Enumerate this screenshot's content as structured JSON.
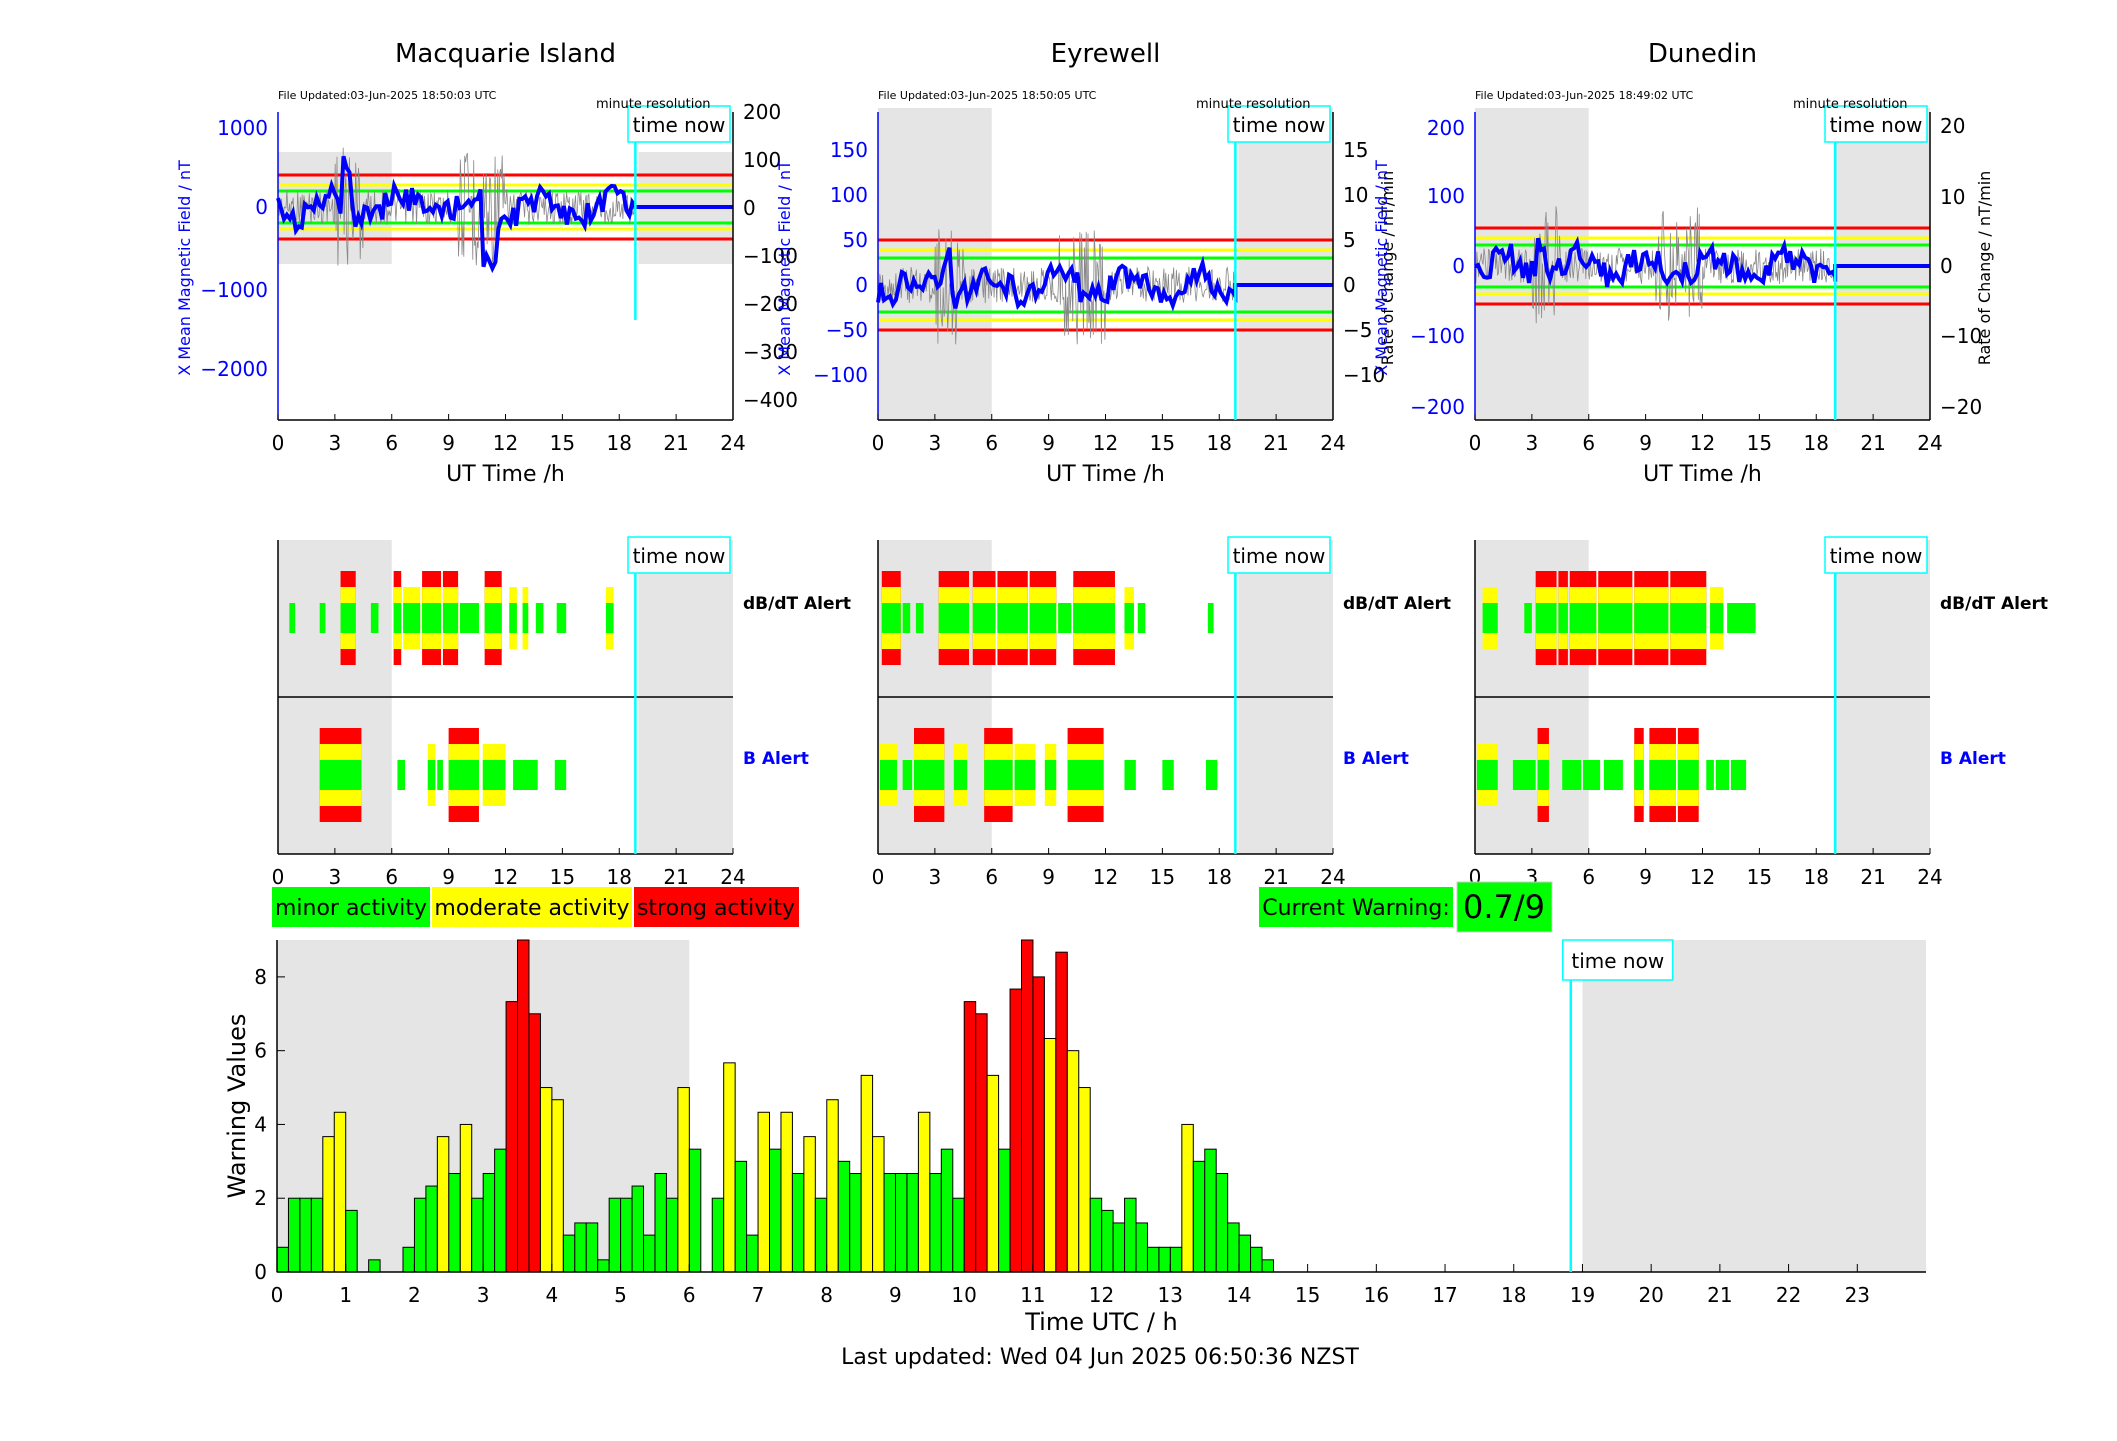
{
  "colors": {
    "green": "#00ff00",
    "yellow": "#ffff00",
    "red": "#ff0000",
    "blue": "#0000ff",
    "cyan": "#00ffff",
    "night": "#e5e5e5"
  },
  "stations": [
    {
      "name": "Macquarie Island",
      "updated": "File Updated:03-Jun-2025 18:50:03 UTC",
      "resolution": "minute resolution",
      "time_now": "time now",
      "left_label": "X Mean Magnetic Field / nT",
      "right_label": "Rate of Change / nT/min",
      "xlabel": "UT Time /h",
      "left_ticks": [
        "1000",
        "0",
        "−1000",
        "−2000"
      ],
      "right_ticks": [
        "200",
        "100",
        "0",
        "−100",
        "−200",
        "−300",
        "−400"
      ],
      "x_ticks": [
        "0",
        "3",
        "6",
        "9",
        "12",
        "15",
        "18",
        "21",
        "24"
      ]
    },
    {
      "name": "Eyrewell",
      "updated": "File Updated:03-Jun-2025 18:50:05 UTC",
      "resolution": "minute resolution",
      "time_now": "time now",
      "left_label": "X Mean Magnetic Field / nT",
      "right_label": "Rate of Change / nT/min",
      "xlabel": "UT Time /h",
      "left_ticks": [
        "150",
        "100",
        "50",
        "0",
        "−50",
        "−100"
      ],
      "right_ticks": [
        "15",
        "10",
        "5",
        "0",
        "−5",
        "−10"
      ],
      "x_ticks": [
        "0",
        "3",
        "6",
        "9",
        "12",
        "15",
        "18",
        "21",
        "24"
      ]
    },
    {
      "name": "Dunedin",
      "updated": "File Updated:03-Jun-2025 18:49:02 UTC",
      "resolution": "minute resolution",
      "time_now": "time now",
      "left_label": "X Mean Magnetic Field / nT",
      "right_label": "Rate of Change / nT/min",
      "xlabel": "UT Time /h",
      "left_ticks": [
        "200",
        "100",
        "0",
        "−100",
        "−200"
      ],
      "right_ticks": [
        "20",
        "10",
        "0",
        "−10",
        "−20"
      ],
      "x_ticks": [
        "0",
        "3",
        "6",
        "9",
        "12",
        "15",
        "18",
        "21",
        "24"
      ]
    }
  ],
  "alerts": {
    "dbdt_label": "dB/dT Alert",
    "b_label": "B Alert",
    "time_now": "time now",
    "x_ticks": [
      "0",
      "3",
      "6",
      "9",
      "12",
      "15",
      "18",
      "21",
      "24"
    ]
  },
  "legend": {
    "minor": "minor activity",
    "moderate": "moderate activity",
    "strong": "strong activity"
  },
  "current_warning": {
    "label": "Current Warning:",
    "value": "0.7/9"
  },
  "chart_data": {
    "type": "bar",
    "title": "",
    "xlabel": "Time UTC / h",
    "ylabel": "Warning Values",
    "xlim": [
      0,
      24
    ],
    "ylim": [
      0,
      9
    ],
    "x_ticks": [
      "0",
      "1",
      "2",
      "3",
      "4",
      "5",
      "6",
      "7",
      "8",
      "9",
      "10",
      "11",
      "12",
      "13",
      "14",
      "15",
      "16",
      "17",
      "18",
      "19",
      "20",
      "21",
      "22",
      "23"
    ],
    "y_ticks": [
      "0",
      "2",
      "4",
      "6",
      "8"
    ],
    "time_now_h": 18.83,
    "time_now_label": "time now",
    "night_shading_h": [
      [
        0,
        6
      ],
      [
        19,
        24
      ]
    ],
    "bin_width_h": 0.1667,
    "values": [
      0.67,
      2,
      2,
      2,
      3.67,
      4.33,
      1.67,
      0,
      0.33,
      0,
      0,
      0.67,
      2,
      2.33,
      3.67,
      2.67,
      4,
      2,
      2.67,
      3.33,
      7.33,
      9,
      7,
      5,
      4.67,
      1,
      1.33,
      1.33,
      0.33,
      2,
      2,
      2.33,
      1,
      2.67,
      2,
      5,
      3.33,
      0,
      2,
      5.67,
      3,
      1,
      4.33,
      3.33,
      4.33,
      2.67,
      3.67,
      2,
      4.67,
      3,
      2.67,
      5.33,
      3.67,
      2.67,
      2.67,
      2.67,
      4.33,
      2.67,
      3.33,
      2,
      7.33,
      7,
      5.33,
      3.33,
      7.67,
      9,
      8,
      6.33,
      8.67,
      6,
      5,
      2,
      1.67,
      1.33,
      2,
      1.33,
      0.67,
      0.67,
      0.67,
      4,
      3,
      3.33,
      2.67,
      1.33,
      1,
      0.67,
      0.33,
      0,
      0,
      0,
      0,
      0,
      0,
      0,
      0,
      0,
      0,
      0,
      0,
      0,
      0,
      0,
      0,
      0,
      0,
      0,
      0,
      0,
      0,
      0,
      0,
      0,
      0,
      0
    ]
  },
  "footer": "Last updated: Wed 04 Jun 2025 06:50:36 NZST"
}
